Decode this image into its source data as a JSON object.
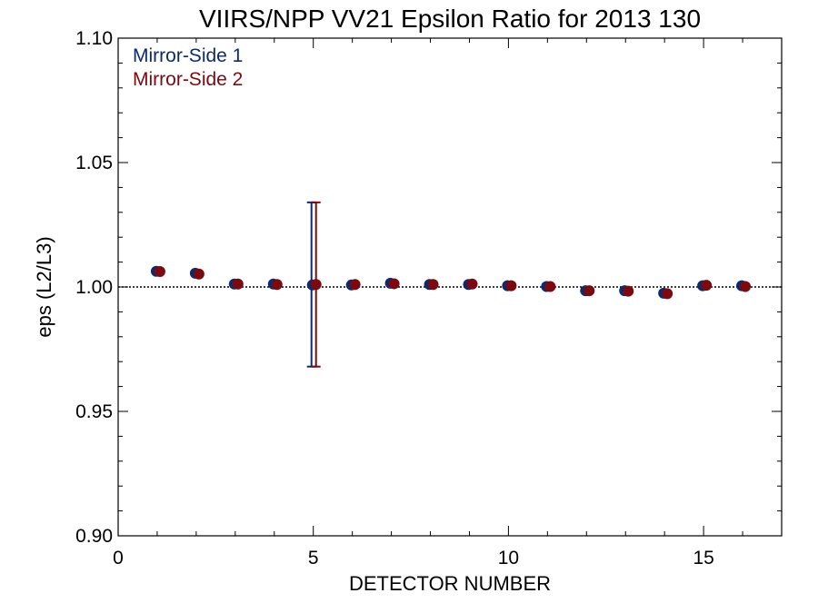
{
  "chart_data": {
    "type": "scatter",
    "title": "VIIRS/NPP VV21 Epsilon Ratio for 2013 130",
    "xlabel": "DETECTOR NUMBER",
    "ylabel": "eps (L2/L3)",
    "xlim": [
      0,
      17
    ],
    "ylim": [
      0.9,
      1.1
    ],
    "x_ticks": [
      "0",
      "5",
      "10",
      "15"
    ],
    "x_tick_values": [
      0,
      5,
      10,
      15
    ],
    "y_ticks": [
      "0.90",
      "0.95",
      "1.00",
      "1.05",
      "1.10"
    ],
    "y_tick_values": [
      0.9,
      0.95,
      1.0,
      1.05,
      1.1
    ],
    "reference_line": {
      "y": 1.0,
      "style": "dotted"
    },
    "legend_position": "top-left",
    "series": [
      {
        "name": "Mirror-Side 1",
        "color": "#0d2a6b",
        "x": [
          1,
          2,
          3,
          4,
          5,
          6,
          7,
          8,
          9,
          10,
          11,
          12,
          13,
          14,
          15,
          16
        ],
        "values": [
          1.0063,
          1.0055,
          1.0012,
          1.0012,
          1.0008,
          1.0008,
          1.0015,
          1.001,
          1.001,
          1.0005,
          1.0002,
          0.9985,
          0.9985,
          0.9975,
          1.0005,
          1.0005
        ],
        "error_bars": [
          {
            "x": 5,
            "low": 0.968,
            "high": 1.034
          }
        ]
      },
      {
        "name": "Mirror-Side 2",
        "color": "#7a0a10",
        "x": [
          1,
          2,
          3,
          4,
          5,
          6,
          7,
          8,
          9,
          10,
          11,
          12,
          13,
          14,
          15,
          16
        ],
        "values": [
          1.0062,
          1.0052,
          1.0012,
          1.001,
          1.001,
          1.001,
          1.0013,
          1.001,
          1.0012,
          1.0005,
          1.0002,
          0.9985,
          0.9983,
          0.9973,
          1.0007,
          1.0002
        ],
        "error_bars": [
          {
            "x": 5,
            "low": 0.968,
            "high": 1.034
          }
        ]
      }
    ]
  }
}
